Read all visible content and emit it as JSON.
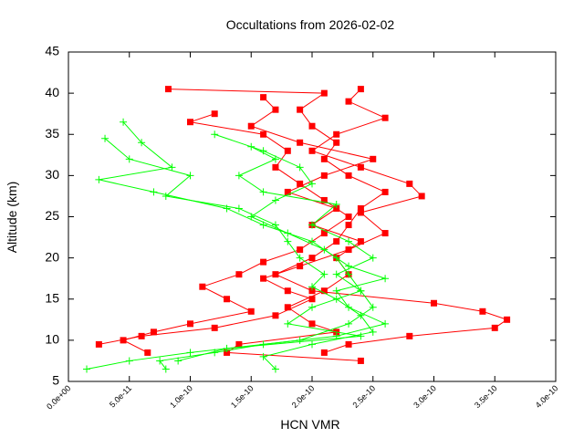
{
  "chart_data": {
    "type": "line",
    "title": "Occultations from 2026-02-02",
    "x_label": "HCN VMR",
    "y_label": "Altitude (km)",
    "xlim": [
      0,
      4e-10
    ],
    "ylim": [
      5,
      45
    ],
    "xticks": [
      {
        "value": 0,
        "label": "0.0e+00"
      },
      {
        "value": 5e-11,
        "label": "5.0e-11"
      },
      {
        "value": 1e-10,
        "label": "1.0e-10"
      },
      {
        "value": 1.5e-10,
        "label": "1.5e-10"
      },
      {
        "value": 2e-10,
        "label": "2.0e-10"
      },
      {
        "value": 2.5e-10,
        "label": "2.5e-10"
      },
      {
        "value": 3e-10,
        "label": "3.0e-10"
      },
      {
        "value": 3.5e-10,
        "label": "3.5e-10"
      },
      {
        "value": 4e-10,
        "label": "4.0e-10"
      }
    ],
    "yticks": [
      5,
      10,
      15,
      20,
      25,
      30,
      35,
      40,
      45
    ],
    "series": [
      {
        "color": "#ff0000",
        "marker": "square",
        "x": [
          8.2e-11,
          2.1e-10,
          1.9e-10,
          2e-10,
          2.2e-10,
          2.1e-10,
          2.3e-10,
          2.6e-10,
          2.4e-10,
          2.3e-10,
          2.2e-10,
          2e-10,
          1.7e-10,
          2e-10,
          3e-10,
          3.4e-10,
          3.6e-10,
          3.5e-10,
          2.8e-10,
          2.3e-10,
          2.1e-10
        ],
        "values": [
          40.5,
          40,
          38,
          36,
          34,
          32,
          30,
          28,
          26,
          24,
          22,
          20,
          18,
          16,
          14.5,
          13.5,
          12.5,
          11.5,
          10.5,
          9.5,
          8.5
        ]
      },
      {
        "color": "#ff0000",
        "marker": "square",
        "x": [
          2.4e-10,
          2.3e-10,
          2.6e-10,
          2.2e-10,
          2e-10,
          2.4e-10,
          2.8e-10,
          2.9e-10,
          2.4e-10,
          2.6e-10,
          2.3e-10,
          1.9e-10,
          1.6e-10,
          1.8e-10,
          2e-10,
          1.7e-10,
          1.2e-10,
          6e-11,
          2.5e-11
        ],
        "values": [
          40.5,
          39,
          37,
          35,
          33,
          31,
          29,
          27.5,
          25.5,
          23,
          21,
          19,
          17.5,
          16,
          15,
          13,
          11.5,
          10.5,
          9.5
        ]
      },
      {
        "color": "#ff0000",
        "marker": "square",
        "x": [
          1.2e-10,
          1e-10,
          1.6e-10,
          1.8e-10,
          1.7e-10,
          1.9e-10,
          2.1e-10,
          2.3e-10,
          2.1e-10,
          1.9e-10,
          1.6e-10,
          1.4e-10,
          1.1e-10,
          1.3e-10,
          1.5e-10,
          1e-10,
          7e-11,
          4.5e-11,
          6.5e-11
        ],
        "values": [
          37.5,
          36.5,
          35,
          33,
          31,
          29,
          27,
          25,
          23,
          21,
          19.5,
          18,
          16.5,
          15,
          13.5,
          12,
          11,
          10,
          8.5
        ]
      },
      {
        "color": "#ff0000",
        "marker": "square",
        "x": [
          1.6e-10,
          1.7e-10,
          1.5e-10,
          1.9e-10,
          2.5e-10,
          2.1e-10,
          1.8e-10,
          2.2e-10,
          2e-10,
          2.4e-10,
          2.2e-10,
          2.3e-10,
          2.1e-10,
          1.8e-10,
          2e-10,
          2.2e-10,
          1.4e-10,
          1.3e-10,
          2.4e-10
        ],
        "values": [
          39.5,
          38,
          36,
          34,
          32,
          30,
          28,
          26,
          24,
          22,
          20,
          18,
          16,
          14,
          12,
          11,
          9.5,
          8.5,
          7.5
        ]
      },
      {
        "color": "#00ff00",
        "marker": "plus",
        "x": [
          4.5e-11,
          6e-11,
          8.5e-11,
          2.5e-11,
          7e-11,
          1.3e-10,
          1.6e-10,
          2e-10,
          2.2e-10,
          2.3e-10,
          2.4e-10,
          2.5e-10,
          2.3e-10,
          1.9e-10,
          1e-10,
          5e-11,
          1.5e-11
        ],
        "values": [
          36.5,
          34,
          31,
          29.5,
          28,
          26,
          24,
          22,
          20,
          18,
          16,
          14,
          12,
          10,
          8.5,
          7.5,
          6.5
        ]
      },
      {
        "color": "#00ff00",
        "marker": "plus",
        "x": [
          1.2e-10,
          1.6e-10,
          1.9e-10,
          2e-10,
          1.7e-10,
          1.5e-10,
          1.8e-10,
          2.1e-10,
          2.3e-10,
          2.6e-10,
          2.2e-10,
          2.3e-10,
          2.6e-10,
          2.2e-10,
          1.6e-10,
          1.2e-10,
          7.5e-11,
          8e-11
        ],
        "values": [
          35,
          33,
          31,
          29,
          27,
          25,
          23,
          21,
          19,
          17.5,
          16,
          14,
          12,
          10.5,
          9.5,
          8.5,
          7.5,
          6.5
        ]
      },
      {
        "color": "#00ff00",
        "marker": "plus",
        "x": [
          3e-11,
          5e-11,
          1e-10,
          8e-11,
          1.4e-10,
          1.7e-10,
          1.8e-10,
          1.9e-10,
          2.1e-10,
          2e-10,
          2.2e-10,
          2.4e-10,
          2.5e-10,
          2e-10,
          1.6e-10,
          1.7e-10
        ],
        "values": [
          34.5,
          32,
          30,
          27.5,
          26,
          24,
          22,
          20,
          18,
          16.5,
          15,
          13,
          11,
          9.5,
          8,
          6.5
        ]
      },
      {
        "color": "#00ff00",
        "marker": "plus",
        "x": [
          1.5e-10,
          1.7e-10,
          1.4e-10,
          1.6e-10,
          2.2e-10,
          2e-10,
          2.3e-10,
          2.5e-10,
          2.2e-10,
          2.4e-10,
          2e-10,
          1.8e-10,
          2.4e-10,
          1.3e-10,
          9e-11
        ],
        "values": [
          33.5,
          32,
          30,
          28,
          26.5,
          24,
          22,
          20,
          18,
          16,
          14,
          12,
          10.5,
          9,
          7.5
        ]
      }
    ]
  }
}
